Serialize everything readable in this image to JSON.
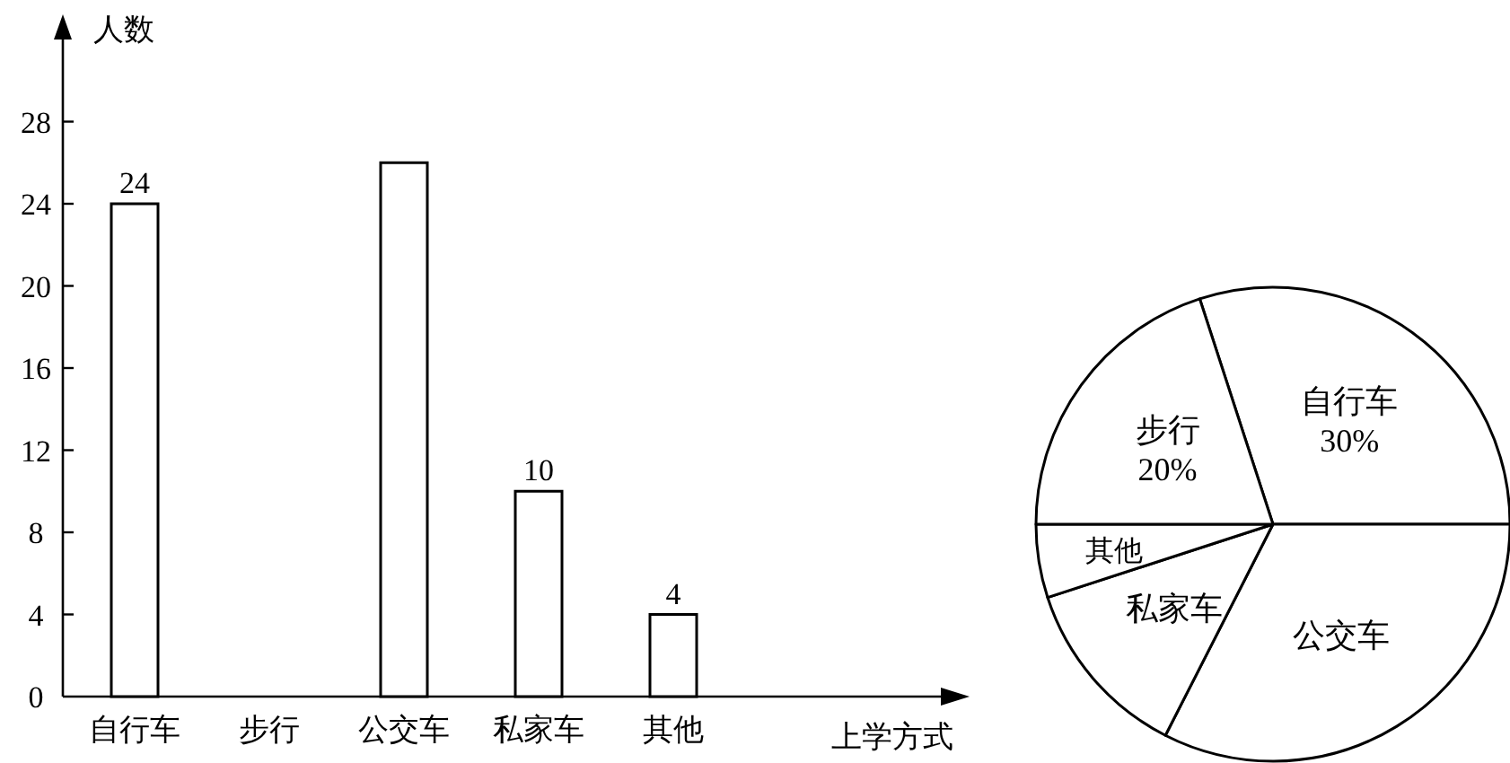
{
  "chart_data": [
    {
      "type": "bar",
      "categories": [
        "自行车",
        "步行",
        "公交车",
        "私家车",
        "其他"
      ],
      "values": [
        24,
        null,
        26,
        10,
        4
      ],
      "value_labels": [
        "24",
        null,
        null,
        "10",
        "4"
      ],
      "color": "#ffffff",
      "ylim": [
        0,
        32
      ],
      "yticks": [
        0,
        4,
        8,
        12,
        16,
        20,
        24,
        28
      ],
      "xlabel": "上学方式",
      "ylabel": "人数"
    },
    {
      "type": "pie",
      "categories": [
        "自行车",
        "公交车",
        "私家车",
        "其他",
        "步行"
      ],
      "values": [
        30,
        32.5,
        12.5,
        5,
        20
      ],
      "value_labels": [
        "30%",
        null,
        null,
        null,
        "20%"
      ],
      "colors": [
        "#ffffff",
        "#ffffff",
        "#ffffff",
        "#ffffff",
        "#ffffff"
      ]
    }
  ]
}
